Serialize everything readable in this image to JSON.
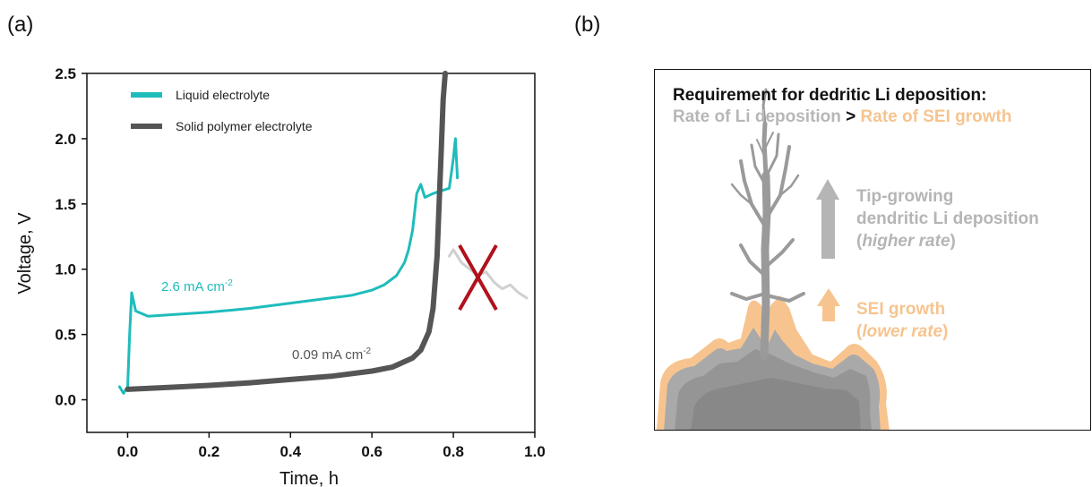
{
  "panels": {
    "a_label": "(a)",
    "b_label": "(b)"
  },
  "chart_data": {
    "type": "line",
    "xlabel": "Time, h",
    "ylabel": "Voltage, V",
    "xlim": [
      -0.1,
      1.0
    ],
    "ylim": [
      -0.25,
      2.5
    ],
    "xticks": [
      "0.0",
      "0.2",
      "0.4",
      "0.6",
      "0.8",
      "1.0"
    ],
    "xtick_values": [
      0.0,
      0.2,
      0.4,
      0.6,
      0.8,
      1.0
    ],
    "yticks": [
      "0.0",
      "0.5",
      "1.0",
      "1.5",
      "2.0",
      "2.5"
    ],
    "ytick_values": [
      0.0,
      0.5,
      1.0,
      1.5,
      2.0,
      2.5
    ],
    "legend_position": "top-left",
    "series": [
      {
        "name": "Liquid electrolyte",
        "color": "#1fbcbc",
        "x": [
          -0.02,
          -0.01,
          0.0,
          0.005,
          0.01,
          0.02,
          0.05,
          0.1,
          0.2,
          0.3,
          0.4,
          0.5,
          0.55,
          0.6,
          0.63,
          0.66,
          0.68,
          0.69,
          0.7,
          0.71,
          0.72,
          0.73,
          0.75,
          0.77,
          0.79,
          0.8,
          0.805,
          0.81
        ],
        "y": [
          0.1,
          0.05,
          0.1,
          0.5,
          0.82,
          0.68,
          0.64,
          0.65,
          0.67,
          0.7,
          0.74,
          0.78,
          0.8,
          0.84,
          0.88,
          0.95,
          1.05,
          1.15,
          1.3,
          1.58,
          1.65,
          1.55,
          1.58,
          1.6,
          1.62,
          1.85,
          2.0,
          1.7
        ]
      },
      {
        "name": "Solid polymer electrolyte",
        "color": "#555555",
        "x": [
          0.0,
          0.1,
          0.2,
          0.3,
          0.4,
          0.5,
          0.6,
          0.65,
          0.7,
          0.72,
          0.74,
          0.75,
          0.76,
          0.765,
          0.77,
          0.775,
          0.78
        ],
        "y": [
          0.08,
          0.095,
          0.11,
          0.13,
          0.155,
          0.18,
          0.22,
          0.25,
          0.32,
          0.38,
          0.52,
          0.7,
          1.1,
          1.5,
          1.9,
          2.3,
          2.6
        ]
      },
      {
        "name": "",
        "color": "#d0d0d0",
        "x": [
          0.79,
          0.8,
          0.82,
          0.84,
          0.86,
          0.88,
          0.9,
          0.92,
          0.94,
          0.96,
          0.98
        ],
        "y": [
          1.1,
          1.15,
          1.05,
          1.0,
          0.95,
          0.98,
          0.9,
          0.85,
          0.88,
          0.82,
          0.78
        ]
      }
    ],
    "annotations": {
      "liquid_rate": "2.6 mA cm",
      "spe_rate": "0.09 mA cm",
      "superscript": "-2"
    }
  },
  "schematic": {
    "requirement_title": "Requirement for dedritic Li deposition:",
    "rate_li": "Rate of Li deposition",
    "gt": " > ",
    "rate_sei": "Rate of SEI growth",
    "tip_line1": "Tip-growing",
    "tip_line2": "dendritic Li deposition",
    "tip_line3_open": "(",
    "tip_line3_italic": "higher rate",
    "tip_line3_close": ")",
    "sei_line1": "SEI growth",
    "sei_line2_open": "(",
    "sei_line2_italic": "lower rate",
    "sei_line2_close": ")",
    "colors": {
      "li_grey": "#b5b5b5",
      "sei_orange": "#f7c48f",
      "cross_red": "#b0121b"
    }
  }
}
